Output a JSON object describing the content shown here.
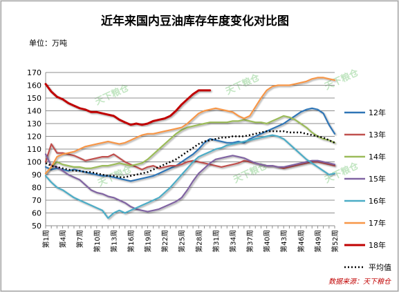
{
  "chart_data": {
    "type": "line",
    "title": "近年来国内豆油库存年度变化对比图",
    "unit_label": "单位：万吨",
    "ylim": [
      50,
      170
    ],
    "yticks": [
      50,
      60,
      70,
      80,
      90,
      100,
      110,
      120,
      130,
      140,
      150,
      160,
      170
    ],
    "grid": true,
    "legend_position": "right",
    "x_count": 52,
    "x_tick_weeks": [
      1,
      4,
      7,
      10,
      13,
      16,
      19,
      22,
      25,
      28,
      31,
      34,
      37,
      40,
      43,
      46,
      49,
      52
    ],
    "x_tick_labels": [
      "第1周",
      "第4周",
      "第7周",
      "第10周",
      "第13周",
      "第16周",
      "第19周",
      "第22周",
      "第25周",
      "第28周",
      "第31周",
      "第34周",
      "第37周",
      "第40周",
      "第43周",
      "第46周",
      "第49周",
      "第52周"
    ],
    "source": "数据来源：天下粮仓",
    "watermark": "天下粮仓",
    "series": [
      {
        "name": "12年",
        "color": "#2e75b6",
        "style": "solid",
        "values": [
          96,
          94,
          95,
          94,
          93,
          94,
          93,
          92,
          91,
          90,
          89,
          89,
          88,
          87,
          86,
          85,
          86,
          87,
          88,
          89,
          91,
          93,
          95,
          97,
          100,
          103,
          106,
          110,
          115,
          118,
          117,
          116,
          115,
          115,
          116,
          115,
          118,
          120,
          122,
          124,
          126,
          128,
          130,
          133,
          136,
          139,
          141,
          142,
          141,
          138,
          129,
          122
        ]
      },
      {
        "name": "13年",
        "color": "#c0504d",
        "style": "solid",
        "values": [
          100,
          114,
          107,
          107,
          106,
          105,
          103,
          101,
          102,
          103,
          104,
          104,
          106,
          103,
          100,
          98,
          96,
          94,
          96,
          97,
          95,
          96,
          97,
          97,
          98,
          100,
          101,
          100,
          99,
          98,
          97,
          96,
          97,
          98,
          99,
          101,
          100,
          99,
          98,
          97,
          97,
          96,
          95,
          96,
          97,
          98,
          99,
          100,
          100,
          99,
          98,
          97
        ]
      },
      {
        "name": "14年",
        "color": "#9bbb59",
        "style": "solid",
        "values": [
          91,
          96,
          100,
          98,
          97,
          96,
          96,
          95,
          95,
          96,
          97,
          97,
          98,
          99,
          98,
          97,
          98,
          99,
          102,
          106,
          110,
          114,
          118,
          122,
          125,
          127,
          128,
          129,
          130,
          131,
          131,
          131,
          131,
          132,
          132,
          133,
          132,
          131,
          131,
          130,
          132,
          134,
          136,
          135,
          133,
          130,
          127,
          123,
          120,
          118,
          117,
          115
        ]
      },
      {
        "name": "15年",
        "color": "#8064a2",
        "style": "solid",
        "values": [
          106,
          97,
          96,
          93,
          90,
          88,
          86,
          82,
          78,
          76,
          75,
          73,
          72,
          70,
          68,
          65,
          63,
          62,
          61,
          62,
          63,
          65,
          67,
          69,
          72,
          78,
          85,
          91,
          95,
          99,
          102,
          103,
          104,
          105,
          104,
          103,
          101,
          99,
          98,
          97,
          97,
          96,
          96,
          97,
          98,
          99,
          100,
          101,
          101,
          100,
          99,
          98
        ]
      },
      {
        "name": "16年",
        "color": "#4bacc6",
        "style": "solid",
        "values": [
          89,
          84,
          80,
          78,
          75,
          72,
          70,
          68,
          66,
          64,
          62,
          56,
          60,
          62,
          60,
          62,
          64,
          66,
          68,
          70,
          72,
          76,
          80,
          85,
          90,
          95,
          100,
          104,
          106,
          108,
          110,
          111,
          113,
          114,
          115,
          116,
          117,
          118,
          119,
          120,
          121,
          120,
          118,
          114,
          110,
          106,
          102,
          99,
          96,
          93,
          90,
          91
        ]
      },
      {
        "name": "17年",
        "color": "#f79646",
        "style": "solid",
        "values": [
          91,
          96,
          104,
          106,
          107,
          108,
          110,
          112,
          113,
          114,
          115,
          116,
          115,
          114,
          115,
          117,
          119,
          121,
          122,
          122,
          123,
          124,
          125,
          126,
          127,
          130,
          134,
          138,
          140,
          141,
          142,
          141,
          140,
          139,
          136,
          134,
          136,
          143,
          150,
          156,
          159,
          160,
          160,
          160,
          161,
          162,
          163,
          165,
          166,
          166,
          165,
          164
        ]
      },
      {
        "name": "18年",
        "color": "#c00000",
        "style": "solid",
        "width": 3,
        "values": [
          161,
          155,
          151,
          149,
          146,
          144,
          142,
          141,
          139,
          139,
          138,
          137,
          136,
          133,
          131,
          129,
          130,
          129,
          130,
          132,
          133,
          134,
          136,
          140,
          145,
          149,
          153,
          156,
          156,
          156
        ]
      },
      {
        "name": "平均值",
        "color": "#000000",
        "style": "dotted",
        "values": [
          99,
          97,
          96,
          95,
          94,
          93,
          93,
          92,
          92,
          91,
          90,
          89,
          89,
          88,
          88,
          89,
          90,
          91,
          92,
          94,
          96,
          98,
          100,
          102,
          105,
          108,
          111,
          114,
          116,
          117,
          118,
          119,
          119,
          120,
          120,
          120,
          121,
          122,
          123,
          124,
          124,
          124,
          124,
          123,
          123,
          123,
          122,
          121,
          120,
          119,
          117,
          115
        ]
      }
    ]
  }
}
